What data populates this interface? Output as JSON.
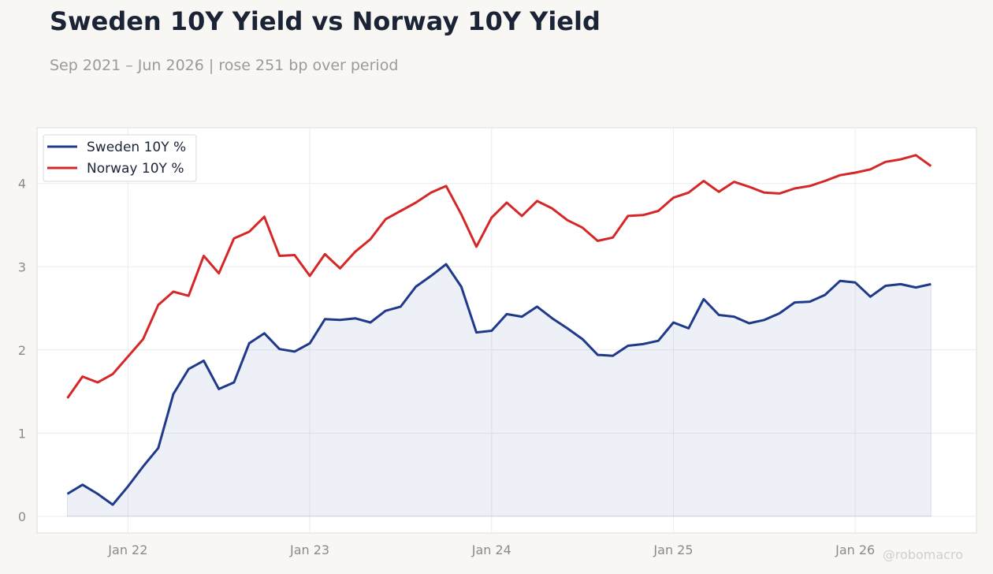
{
  "header": {
    "title": "Sweden 10Y Yield vs Norway 10Y Yield",
    "subtitle": "Sep 2021 – Jun 2026 | rose 251 bp over period"
  },
  "watermark": "@robomacro",
  "chart_data": {
    "type": "line",
    "title": "Sweden 10Y Yield vs Norway 10Y Yield",
    "subtitle": "Sep 2021 – Jun 2026 | rose 251 bp over period",
    "xlabel": "",
    "ylabel": "",
    "x_range": [
      "2021-07-01",
      "2026-09-01"
    ],
    "ylim": [
      -0.2,
      4.67
    ],
    "x_ticks": [
      {
        "date": "2022-01",
        "label": "Jan 22"
      },
      {
        "date": "2023-01",
        "label": "Jan 23"
      },
      {
        "date": "2024-01",
        "label": "Jan 24"
      },
      {
        "date": "2025-01",
        "label": "Jan 25"
      },
      {
        "date": "2026-01",
        "label": "Jan 26"
      }
    ],
    "y_ticks": [
      0,
      1,
      2,
      3,
      4
    ],
    "grid": true,
    "legend_position": "top-left",
    "x": [
      "2021-09",
      "2021-10",
      "2021-11",
      "2021-12",
      "2022-01",
      "2022-02",
      "2022-03",
      "2022-04",
      "2022-05",
      "2022-06",
      "2022-07",
      "2022-08",
      "2022-09",
      "2022-10",
      "2022-11",
      "2022-12",
      "2023-01",
      "2023-02",
      "2023-03",
      "2023-04",
      "2023-05",
      "2023-06",
      "2023-07",
      "2023-08",
      "2023-09",
      "2023-10",
      "2023-11",
      "2023-12",
      "2024-01",
      "2024-02",
      "2024-03",
      "2024-04",
      "2024-05",
      "2024-06",
      "2024-07",
      "2024-08",
      "2024-09",
      "2024-10",
      "2024-11",
      "2024-12",
      "2025-01",
      "2025-02",
      "2025-03",
      "2025-04",
      "2025-05",
      "2025-06",
      "2025-07",
      "2025-08",
      "2025-09",
      "2025-10",
      "2025-11",
      "2025-12",
      "2026-01",
      "2026-02",
      "2026-03",
      "2026-04",
      "2026-05",
      "2026-06"
    ],
    "series": [
      {
        "name": "Sweden 10Y %",
        "color": "#1f3a8a",
        "fill": true,
        "values": [
          0.27,
          0.38,
          0.27,
          0.14,
          0.36,
          0.6,
          0.82,
          1.47,
          1.77,
          1.87,
          1.53,
          1.61,
          2.08,
          2.2,
          2.01,
          1.98,
          2.08,
          2.37,
          2.36,
          2.38,
          2.33,
          2.47,
          2.52,
          2.76,
          2.89,
          3.03,
          2.76,
          2.21,
          2.23,
          2.43,
          2.4,
          2.52,
          2.38,
          2.26,
          2.13,
          1.94,
          1.93,
          2.05,
          2.07,
          2.11,
          2.33,
          2.26,
          2.61,
          2.42,
          2.4,
          2.32,
          2.36,
          2.44,
          2.57,
          2.58,
          2.66,
          2.83,
          2.81,
          2.64,
          2.77,
          2.79,
          2.75,
          2.79
        ]
      },
      {
        "name": "Norway 10Y %",
        "color": "#d62728",
        "fill": false,
        "values": [
          1.42,
          1.68,
          1.61,
          1.71,
          1.92,
          2.13,
          2.54,
          2.7,
          2.65,
          3.13,
          2.92,
          3.34,
          3.42,
          3.6,
          3.13,
          3.14,
          2.89,
          3.15,
          2.98,
          3.18,
          3.33,
          3.57,
          3.67,
          3.77,
          3.89,
          3.97,
          3.63,
          3.24,
          3.59,
          3.77,
          3.61,
          3.79,
          3.7,
          3.56,
          3.47,
          3.31,
          3.35,
          3.61,
          3.62,
          3.67,
          3.83,
          3.89,
          4.03,
          3.9,
          4.02,
          3.96,
          3.89,
          3.88,
          3.94,
          3.97,
          4.03,
          4.1,
          4.13,
          4.17,
          4.26,
          4.29,
          4.34,
          4.21
        ]
      }
    ]
  }
}
